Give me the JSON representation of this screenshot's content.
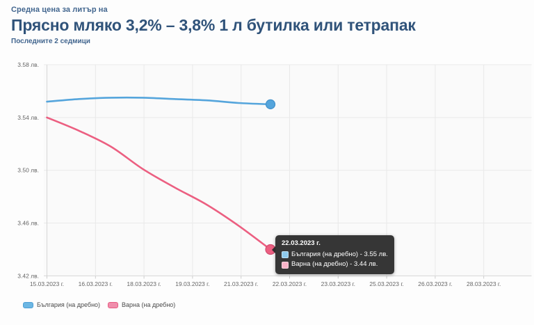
{
  "header": {
    "eyebrow": "Средна цена за литър на",
    "title": "Прясно мляко 3,2% – 3,8% 1 л бутилка или тетрапак",
    "subtitle": "Последните 2 седмици"
  },
  "colors": {
    "title_text": "#30537a",
    "axis_text": "#666666",
    "grid": "#e9e9e9",
    "blue_line": "#55a5dc",
    "blue_marker_stroke": "#4191cc",
    "pink_line": "#ec5f81",
    "pink_marker_stroke": "#d14e71",
    "legend_blue_fill": "#6db7e3",
    "legend_blue_border": "#4d9fd6",
    "legend_pink_fill": "#f08eac",
    "legend_pink_border": "#e75c82",
    "tooltip_blue_swatch": "#8ec9ec",
    "tooltip_pink_swatch": "#f8b3c8"
  },
  "chart_data": {
    "type": "line",
    "title": "Прясно мляко 3,2% – 3,8% 1 л бутилка или тетрапак",
    "subtitle": "Последните 2 седмици",
    "ylim": [
      3.42,
      3.58
    ],
    "grid": true,
    "legend_position": "bottom-left",
    "y_ticks": [
      {
        "value": 3.58,
        "label": "3.58 лв."
      },
      {
        "value": 3.54,
        "label": "3.54 лв."
      },
      {
        "value": 3.5,
        "label": "3.50 лв."
      },
      {
        "value": 3.46,
        "label": "3.46 лв."
      },
      {
        "value": 3.42,
        "label": "3.42 лв."
      }
    ],
    "x_labels": [
      "15.03.2023 г.",
      "16.03.2023 г.",
      "18.03.2023 г.",
      "19.03.2023 г.",
      "21.03.2023 г.",
      "22.03.2023 г.",
      "23.03.2023 г.",
      "25.03.2023 г.",
      "26.03.2023 г.",
      "28.03.2023 г."
    ],
    "series": [
      {
        "name": "България (на дребно)",
        "color": "#55a5dc",
        "x": [
          "15.03.2023",
          "16.03.2023",
          "17.03.2023",
          "18.03.2023",
          "19.03.2023",
          "20.03.2023",
          "21.03.2023",
          "22.03.2023"
        ],
        "values": [
          3.552,
          3.554,
          3.555,
          3.555,
          3.554,
          3.553,
          3.551,
          3.55
        ]
      },
      {
        "name": "Варна (на дребно)",
        "color": "#ec5f81",
        "x": [
          "15.03.2023",
          "16.03.2023",
          "17.03.2023",
          "18.03.2023",
          "19.03.2023",
          "20.03.2023",
          "21.03.2023",
          "22.03.2023"
        ],
        "values": [
          3.54,
          3.53,
          3.518,
          3.501,
          3.487,
          3.474,
          3.458,
          3.44
        ]
      }
    ]
  },
  "tooltip": {
    "date": "22.03.2023 г.",
    "rows": [
      {
        "series": "България (на дребно)",
        "value": "3.55 лв.",
        "text": "България (на дребно) - 3.55 лв."
      },
      {
        "series": "Варна (на дребно)",
        "value": "3.44 лв.",
        "text": "Варна (на дребно) - 3.44 лв."
      }
    ]
  },
  "legend": {
    "items": [
      {
        "label": "България (на дребно)"
      },
      {
        "label": "Варна (на дребно)"
      }
    ]
  }
}
